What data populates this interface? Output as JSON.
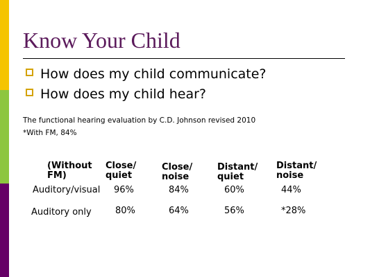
{
  "title": "Know Your Child",
  "bullets": [
    "How does my child communicate?",
    "How does my child hear?"
  ],
  "notes": [
    "The functional hearing evaluation by C.D. Johnson revised 2010",
    "*With FM, 84%"
  ],
  "table": {
    "header": [
      "(Without FM)",
      "Close/ quiet",
      "Close/ noise",
      "Distant/ quiet",
      "Distant/ noise"
    ],
    "rows": [
      [
        "Auditory/visual",
        "96%",
        "84%",
        "60%",
        "44%"
      ],
      [
        "Auditory only",
        "80%",
        "64%",
        "56%",
        "*28%"
      ]
    ]
  }
}
